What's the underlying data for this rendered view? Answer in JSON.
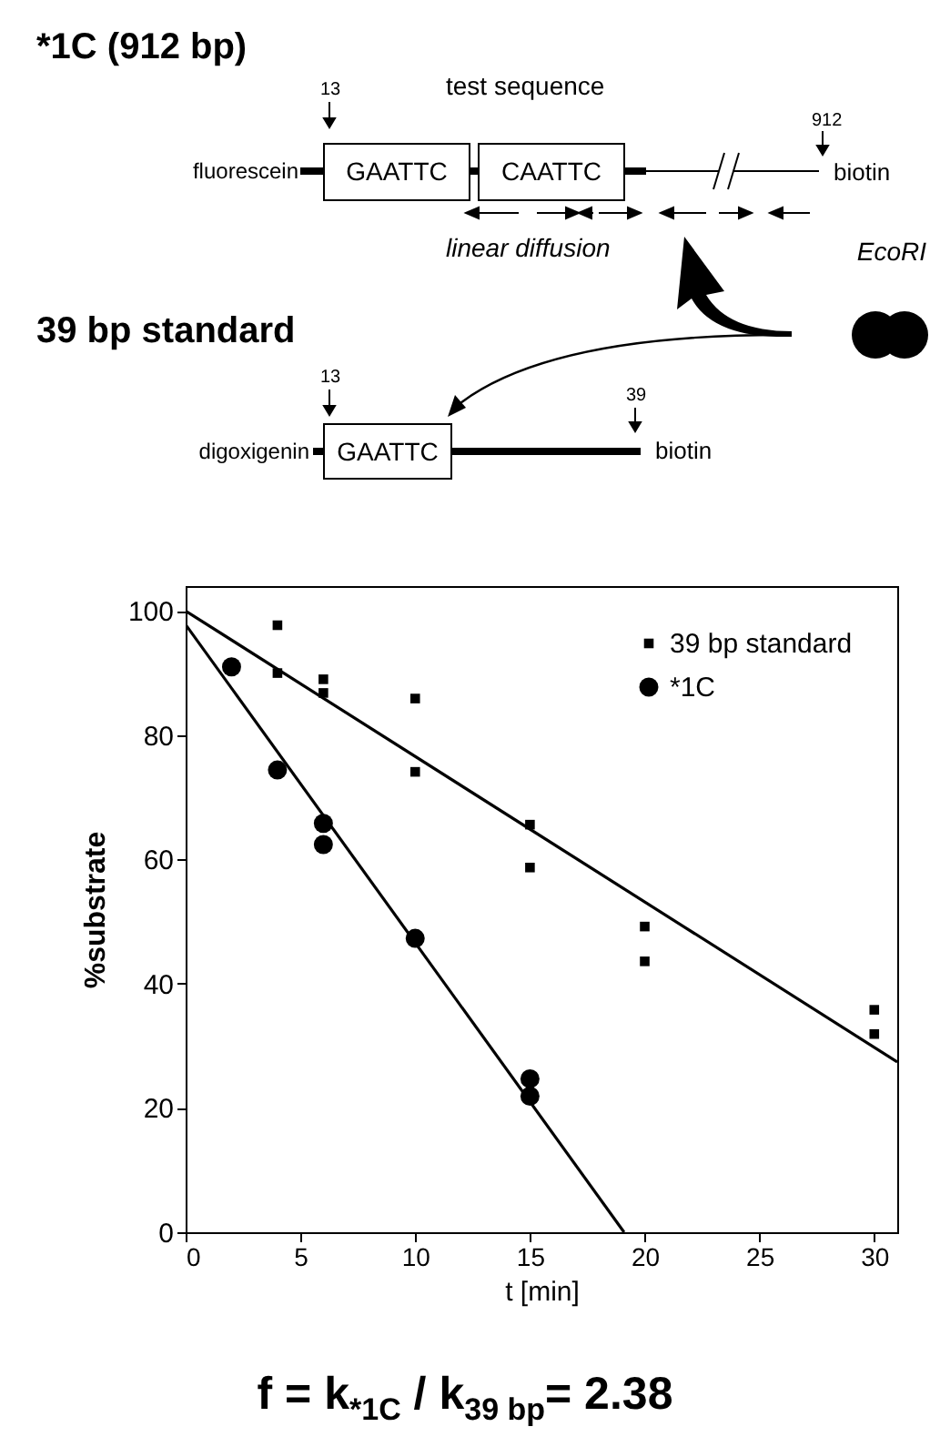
{
  "chart_data": {
    "type": "scatter",
    "xlabel": "t [min]",
    "ylabel": "%substrate",
    "xlim": [
      0,
      31
    ],
    "ylim": [
      0,
      104
    ],
    "xticks": [
      0,
      5,
      10,
      15,
      20,
      25,
      30
    ],
    "yticks": [
      0,
      20,
      40,
      60,
      80,
      100
    ],
    "grid": false,
    "legend": "top right",
    "series": [
      {
        "name": "39 bp standard",
        "type": "scatter",
        "marker": "square",
        "color": "#000000",
        "x": [
          4,
          4,
          6,
          6,
          10,
          10,
          15,
          15,
          20,
          20,
          30,
          30
        ],
        "values": [
          97.7,
          90.0,
          89.0,
          86.8,
          85.9,
          74.1,
          65.6,
          58.7,
          49.2,
          43.6,
          35.8,
          31.9
        ]
      },
      {
        "name": "*1C",
        "type": "scatter",
        "marker": "circle",
        "color": "#000000",
        "x": [
          2,
          4,
          6,
          6,
          10,
          15,
          15
        ],
        "values": [
          91.0,
          74.4,
          65.8,
          62.4,
          47.3,
          24.7,
          21.9
        ]
      },
      {
        "type": "line",
        "color": "#000000",
        "x": [
          0,
          31
        ],
        "values": [
          100,
          27.4
        ]
      },
      {
        "type": "line",
        "color": "#000000",
        "x": [
          0,
          19.1
        ],
        "values": [
          97.8,
          0
        ]
      }
    ],
    "annotations": [
      "*1C (912 bp)",
      "13",
      "test sequence",
      "912",
      "fluorescein",
      "GAATTC",
      "CAATTC",
      "biotin",
      "linear diffusion",
      "EcoRI",
      "39 bp standard",
      "13",
      "39",
      "digoxigenin",
      "GAATTC",
      "biotin",
      "f = k$_{*1C}$  / k$_{39 bp}$= 2.38"
    ]
  }
}
